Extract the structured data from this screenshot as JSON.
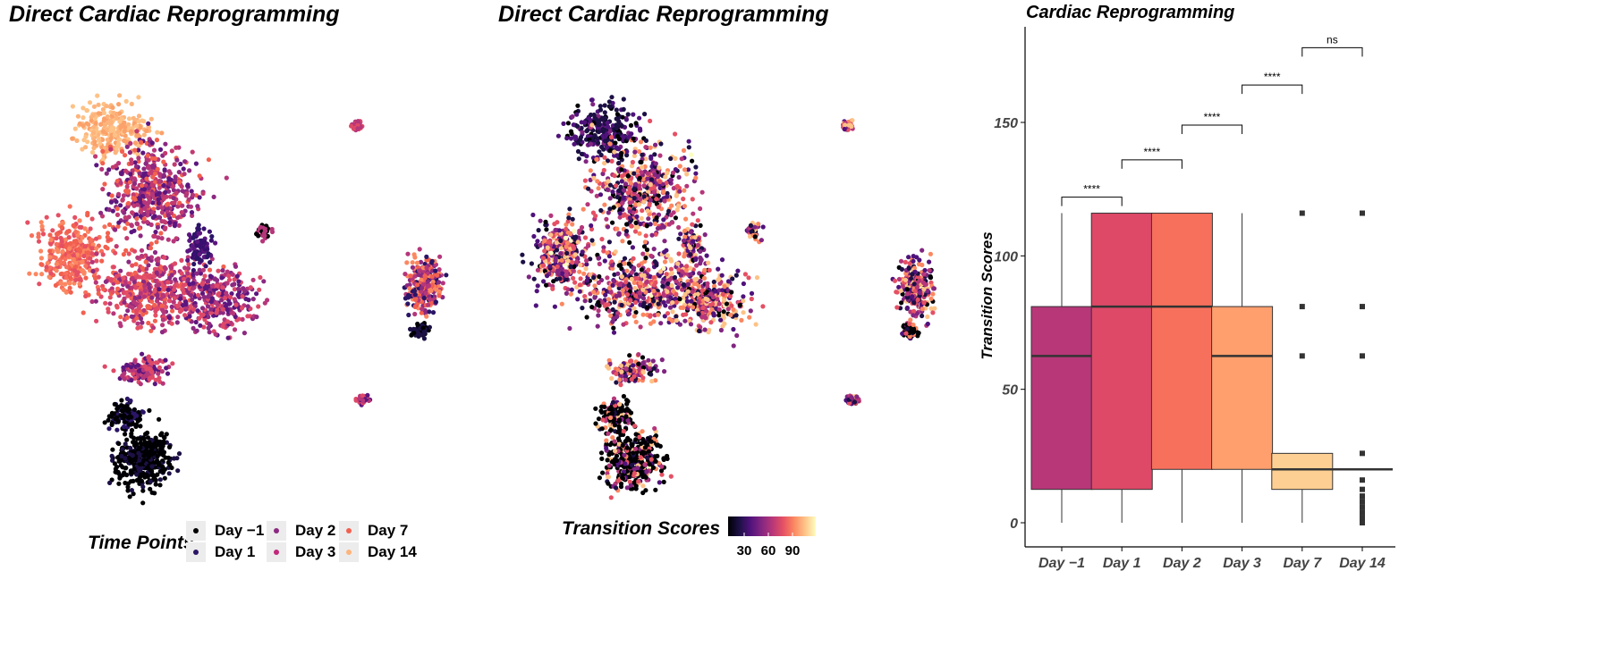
{
  "umap_time": {
    "title": "Direct Cardiac Reprogramming",
    "legend_title": "Time Points",
    "legend": [
      {
        "label": "Day −1",
        "color": "#000004"
      },
      {
        "label": "Day 1",
        "color": "#3b0f70"
      },
      {
        "label": "Day 2",
        "color": "#8c2981"
      },
      {
        "label": "Day 3",
        "color": "#de4968"
      },
      {
        "label": "Day 7",
        "color": "#fe9f6d"
      },
      {
        "label": "Day 14",
        "color": "#fcfdbf"
      }
    ]
  },
  "umap_scores": {
    "title": "Direct Cardiac Reprogramming",
    "legend_title": "Transition Scores",
    "colorbar_ticks": [
      "30",
      "60",
      "90"
    ],
    "colormap": "magma"
  },
  "chart_data": {
    "type": "box",
    "title": "Cardiac Reprogramming",
    "xlabel": "",
    "ylabel": "Transition Scores",
    "ylim": [
      -8,
      185
    ],
    "yticks": [
      0,
      50,
      100,
      150
    ],
    "grid": false,
    "categories": [
      "Day −1",
      "Day 1",
      "Day 2",
      "Day 3",
      "Day 7",
      "Day 14"
    ],
    "colors": [
      "#b73779",
      "#de4968",
      "#f7705c",
      "#fe9f6d",
      "#fecf92",
      "#fde0a8"
    ],
    "boxes": [
      {
        "min": 0,
        "q1": 12.5,
        "median": 62.5,
        "q3": 81,
        "max": 116,
        "outliers": []
      },
      {
        "min": 0,
        "q1": 12.5,
        "median": 81,
        "q3": 116,
        "max": 116,
        "outliers": []
      },
      {
        "min": 0,
        "q1": 20,
        "median": 81,
        "q3": 116,
        "max": 116,
        "outliers": []
      },
      {
        "min": 0,
        "q1": 20,
        "median": 62.5,
        "q3": 81,
        "max": 116,
        "outliers": []
      },
      {
        "min": 0,
        "q1": 12.5,
        "median": 20,
        "q3": 26,
        "max": 26,
        "outliers": [
          62.5,
          81,
          116
        ]
      },
      {
        "min": 20,
        "q1": 20,
        "median": 20,
        "q3": 20,
        "max": 20,
        "outliers": [
          0,
          2,
          4,
          6,
          8,
          10,
          12.5,
          16,
          26,
          62.5,
          81,
          116
        ]
      }
    ],
    "comparisons": [
      {
        "from": 0,
        "to": 1,
        "y": 122,
        "label": "****"
      },
      {
        "from": 1,
        "to": 2,
        "y": 136,
        "label": "****"
      },
      {
        "from": 2,
        "to": 3,
        "y": 149,
        "label": "****"
      },
      {
        "from": 3,
        "to": 4,
        "y": 164,
        "label": "****"
      },
      {
        "from": 4,
        "to": 5,
        "y": 178,
        "label": "ns"
      }
    ]
  }
}
